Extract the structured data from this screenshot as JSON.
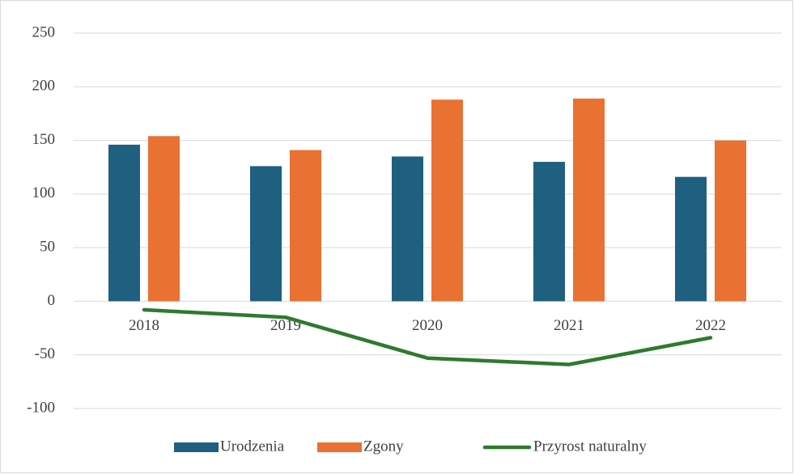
{
  "chart_data": {
    "type": "bar",
    "categories": [
      "2018",
      "2019",
      "2020",
      "2021",
      "2022"
    ],
    "series": [
      {
        "name": "Urodzenia",
        "color": "#1f5f80",
        "type": "bar",
        "values": [
          146,
          126,
          135,
          130,
          116
        ]
      },
      {
        "name": "Zgony",
        "color": "#e97132",
        "type": "bar",
        "values": [
          154,
          141,
          188,
          189,
          150
        ]
      },
      {
        "name": "Przyrost naturalny",
        "color": "#2e7a2f",
        "type": "line",
        "values": [
          -8,
          -15,
          -53,
          -59,
          -34
        ]
      }
    ],
    "ylim": [
      -100,
      250
    ],
    "yticks": [
      -100,
      -50,
      0,
      50,
      100,
      150,
      200,
      250
    ],
    "grid": true,
    "legend": "bottom"
  }
}
